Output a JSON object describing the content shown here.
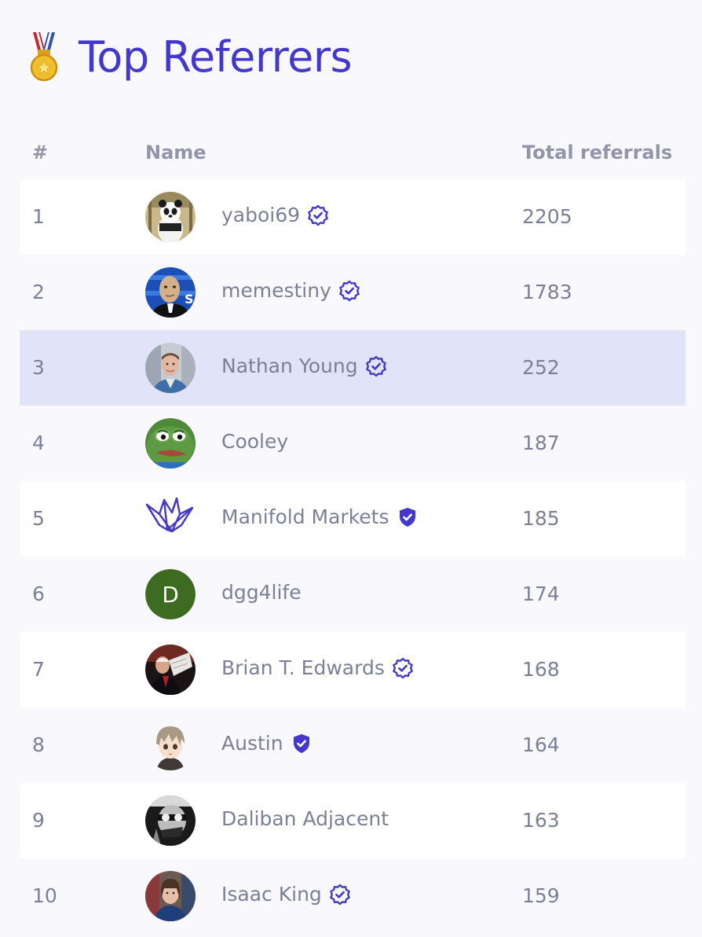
{
  "page": {
    "title": "Top Referrers",
    "medal_icon": "medal-icon"
  },
  "table": {
    "headers": {
      "rank": "#",
      "name": "Name",
      "total": "Total referrals"
    },
    "rows": [
      {
        "rank": "1",
        "name": "yaboi69",
        "total": "2205",
        "badge": "verified-check-icon",
        "avatar": "panda-avatar"
      },
      {
        "rank": "2",
        "name": "memestiny",
        "total": "1783",
        "badge": "verified-check-icon",
        "avatar": "meme-man-avatar"
      },
      {
        "rank": "3",
        "name": "Nathan Young",
        "total": "252",
        "badge": "verified-check-icon",
        "avatar": "photo-avatar"
      },
      {
        "rank": "4",
        "name": "Cooley",
        "total": "187",
        "badge": "",
        "avatar": "pepe-avatar"
      },
      {
        "rank": "5",
        "name": "Manifold Markets",
        "total": "185",
        "badge": "mod-shield-icon",
        "avatar": "manifold-crane-logo"
      },
      {
        "rank": "6",
        "name": "dgg4life",
        "total": "174",
        "badge": "",
        "avatar": "letter-avatar",
        "avatar_letter": "D"
      },
      {
        "rank": "7",
        "name": "Brian T. Edwards",
        "total": "168",
        "badge": "verified-check-icon",
        "avatar": "photo-avatar"
      },
      {
        "rank": "8",
        "name": "Austin",
        "total": "164",
        "badge": "mod-shield-icon",
        "avatar": "anime-avatar"
      },
      {
        "rank": "9",
        "name": "Daliban Adjacent",
        "total": "163",
        "badge": "",
        "avatar": "bw-photo-avatar"
      },
      {
        "rank": "10",
        "name": "Isaac King",
        "total": "159",
        "badge": "verified-check-icon",
        "avatar": "photo-avatar"
      }
    ],
    "highlighted_rank": "3"
  },
  "colors": {
    "accent": "#4338ca",
    "text": "#7c8094",
    "header_text": "#9295a7",
    "highlight_row": "#e1e4f9",
    "avatar_letter_bg": "#3e6b22"
  }
}
